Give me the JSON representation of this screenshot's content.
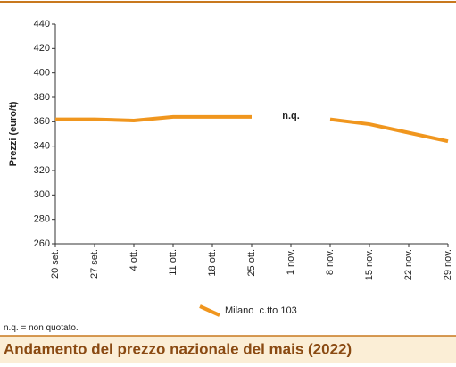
{
  "chart_data": {
    "type": "line",
    "title": "Andamento del prezzo nazionale del mais (2022)",
    "y_label": "Prezzi (euro/t)",
    "annotation": "n.q.",
    "note": "n.q. = non quotato.",
    "categories": [
      "20 set.",
      "27 set.",
      "4 ott.",
      "11 ott.",
      "18 ott.",
      "25 ott.",
      "1 nov.",
      "8 nov.",
      "15 nov.",
      "22 nov.",
      "29 nov."
    ],
    "series": [
      {
        "name": "Milano  c.tto 103",
        "color": "#f0961e",
        "values": [
          362,
          362,
          361,
          364,
          364,
          364,
          null,
          362,
          358,
          351,
          344
        ]
      }
    ],
    "ylim": [
      260,
      440
    ],
    "yticks": [
      260,
      280,
      300,
      320,
      340,
      360,
      380,
      400,
      420,
      440
    ],
    "grid": false
  }
}
